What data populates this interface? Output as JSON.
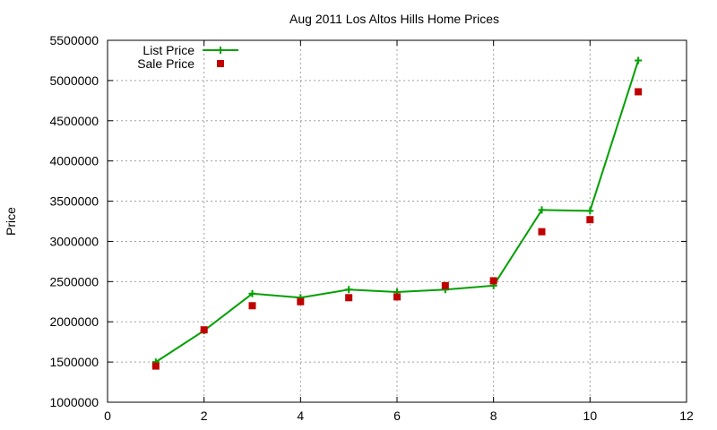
{
  "chart_data": {
    "type": "line",
    "title": "Aug 2011 Los Altos Hills Home Prices",
    "xlabel": "",
    "ylabel": "Price",
    "xlim": [
      0,
      12
    ],
    "ylim": [
      1000000,
      5500000
    ],
    "xticks": [
      "0",
      "2",
      "4",
      "6",
      "8",
      "10",
      "12"
    ],
    "yticks": [
      "1000000",
      "1500000",
      "2000000",
      "2500000",
      "3000000",
      "3500000",
      "4000000",
      "4500000",
      "5000000",
      "5500000"
    ],
    "grid": true,
    "legend_position": "top-left",
    "series": [
      {
        "name": "List Price",
        "style": "line+plus-marker",
        "color": "#00a000",
        "x": [
          1,
          2,
          3,
          4,
          5,
          6,
          7,
          8,
          9,
          10,
          11
        ],
        "y": [
          1500000,
          1890000,
          2350000,
          2300000,
          2400000,
          2370000,
          2400000,
          2450000,
          3390000,
          3380000,
          5250000
        ]
      },
      {
        "name": "Sale Price",
        "style": "square-marker",
        "color": "#c00000",
        "x": [
          1,
          2,
          3,
          4,
          5,
          6,
          7,
          8,
          9,
          10,
          11
        ],
        "y": [
          1450000,
          1900000,
          2200000,
          2250000,
          2300000,
          2310000,
          2450000,
          2510000,
          3120000,
          3270000,
          4860000
        ]
      }
    ]
  }
}
